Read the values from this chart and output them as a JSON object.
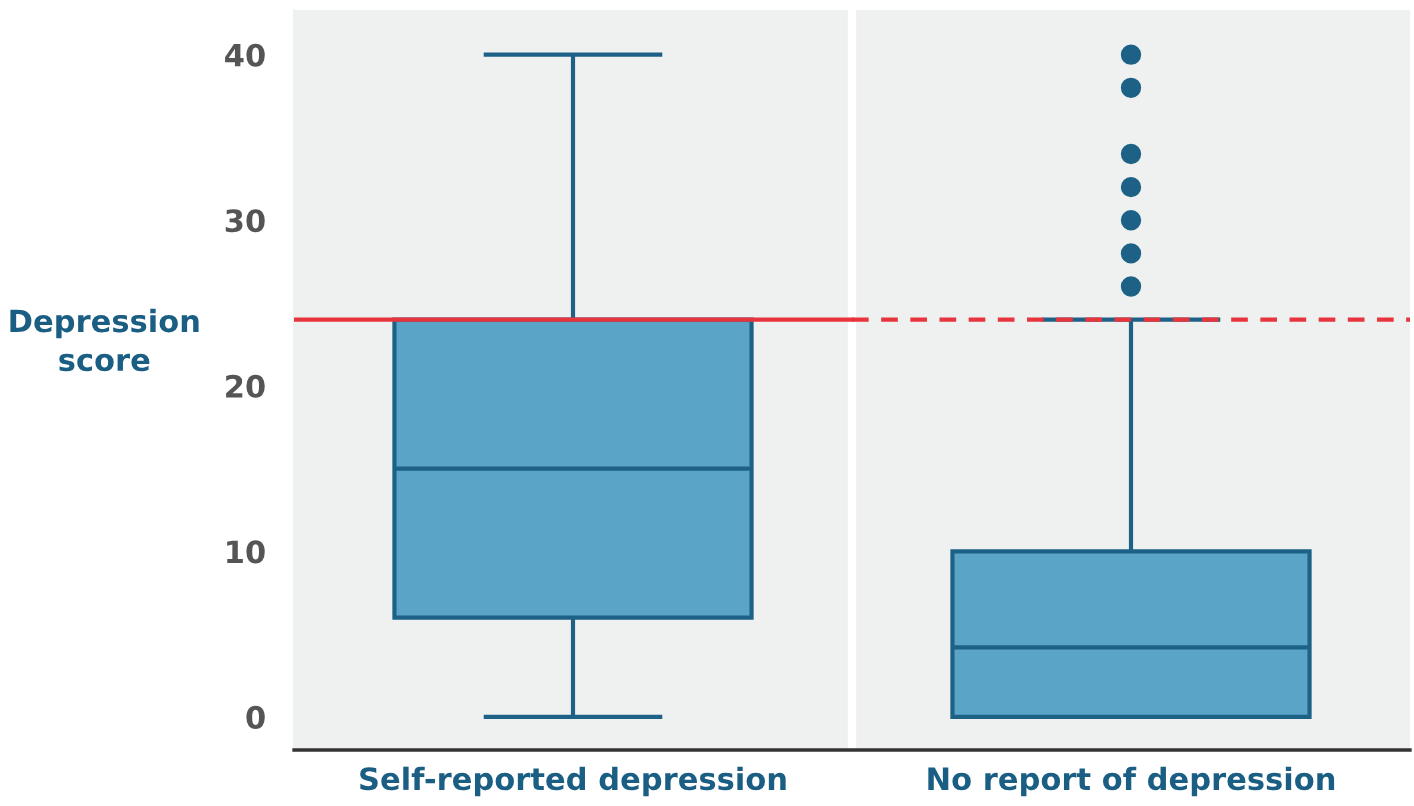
{
  "chart_data": {
    "type": "box",
    "ylabel": "Depression score",
    "categories": [
      "Self-reported depression",
      "No report of depression"
    ],
    "ylim": [
      -2,
      42.7
    ],
    "yticks": [
      0,
      10,
      20,
      30,
      40
    ],
    "grid": false,
    "series": [
      {
        "color": "#5aa5c7",
        "boxes": [
          {
            "low": 0,
            "q1": 6,
            "median": 15,
            "q3": 24,
            "high": 40
          },
          {
            "low": 0,
            "q1": 0,
            "median": 4.2,
            "q3": 10,
            "high": 24,
            "outliers": [
              26,
              28,
              30,
              32,
              34,
              38,
              40
            ]
          }
        ]
      }
    ],
    "ref_lines": [
      {
        "axis": "y",
        "value": 24,
        "color": "#e8343c",
        "line_style": "solid"
      },
      {
        "axis": "y",
        "value": 24,
        "color": "#e8343c",
        "line_style": "dashed"
      }
    ]
  }
}
